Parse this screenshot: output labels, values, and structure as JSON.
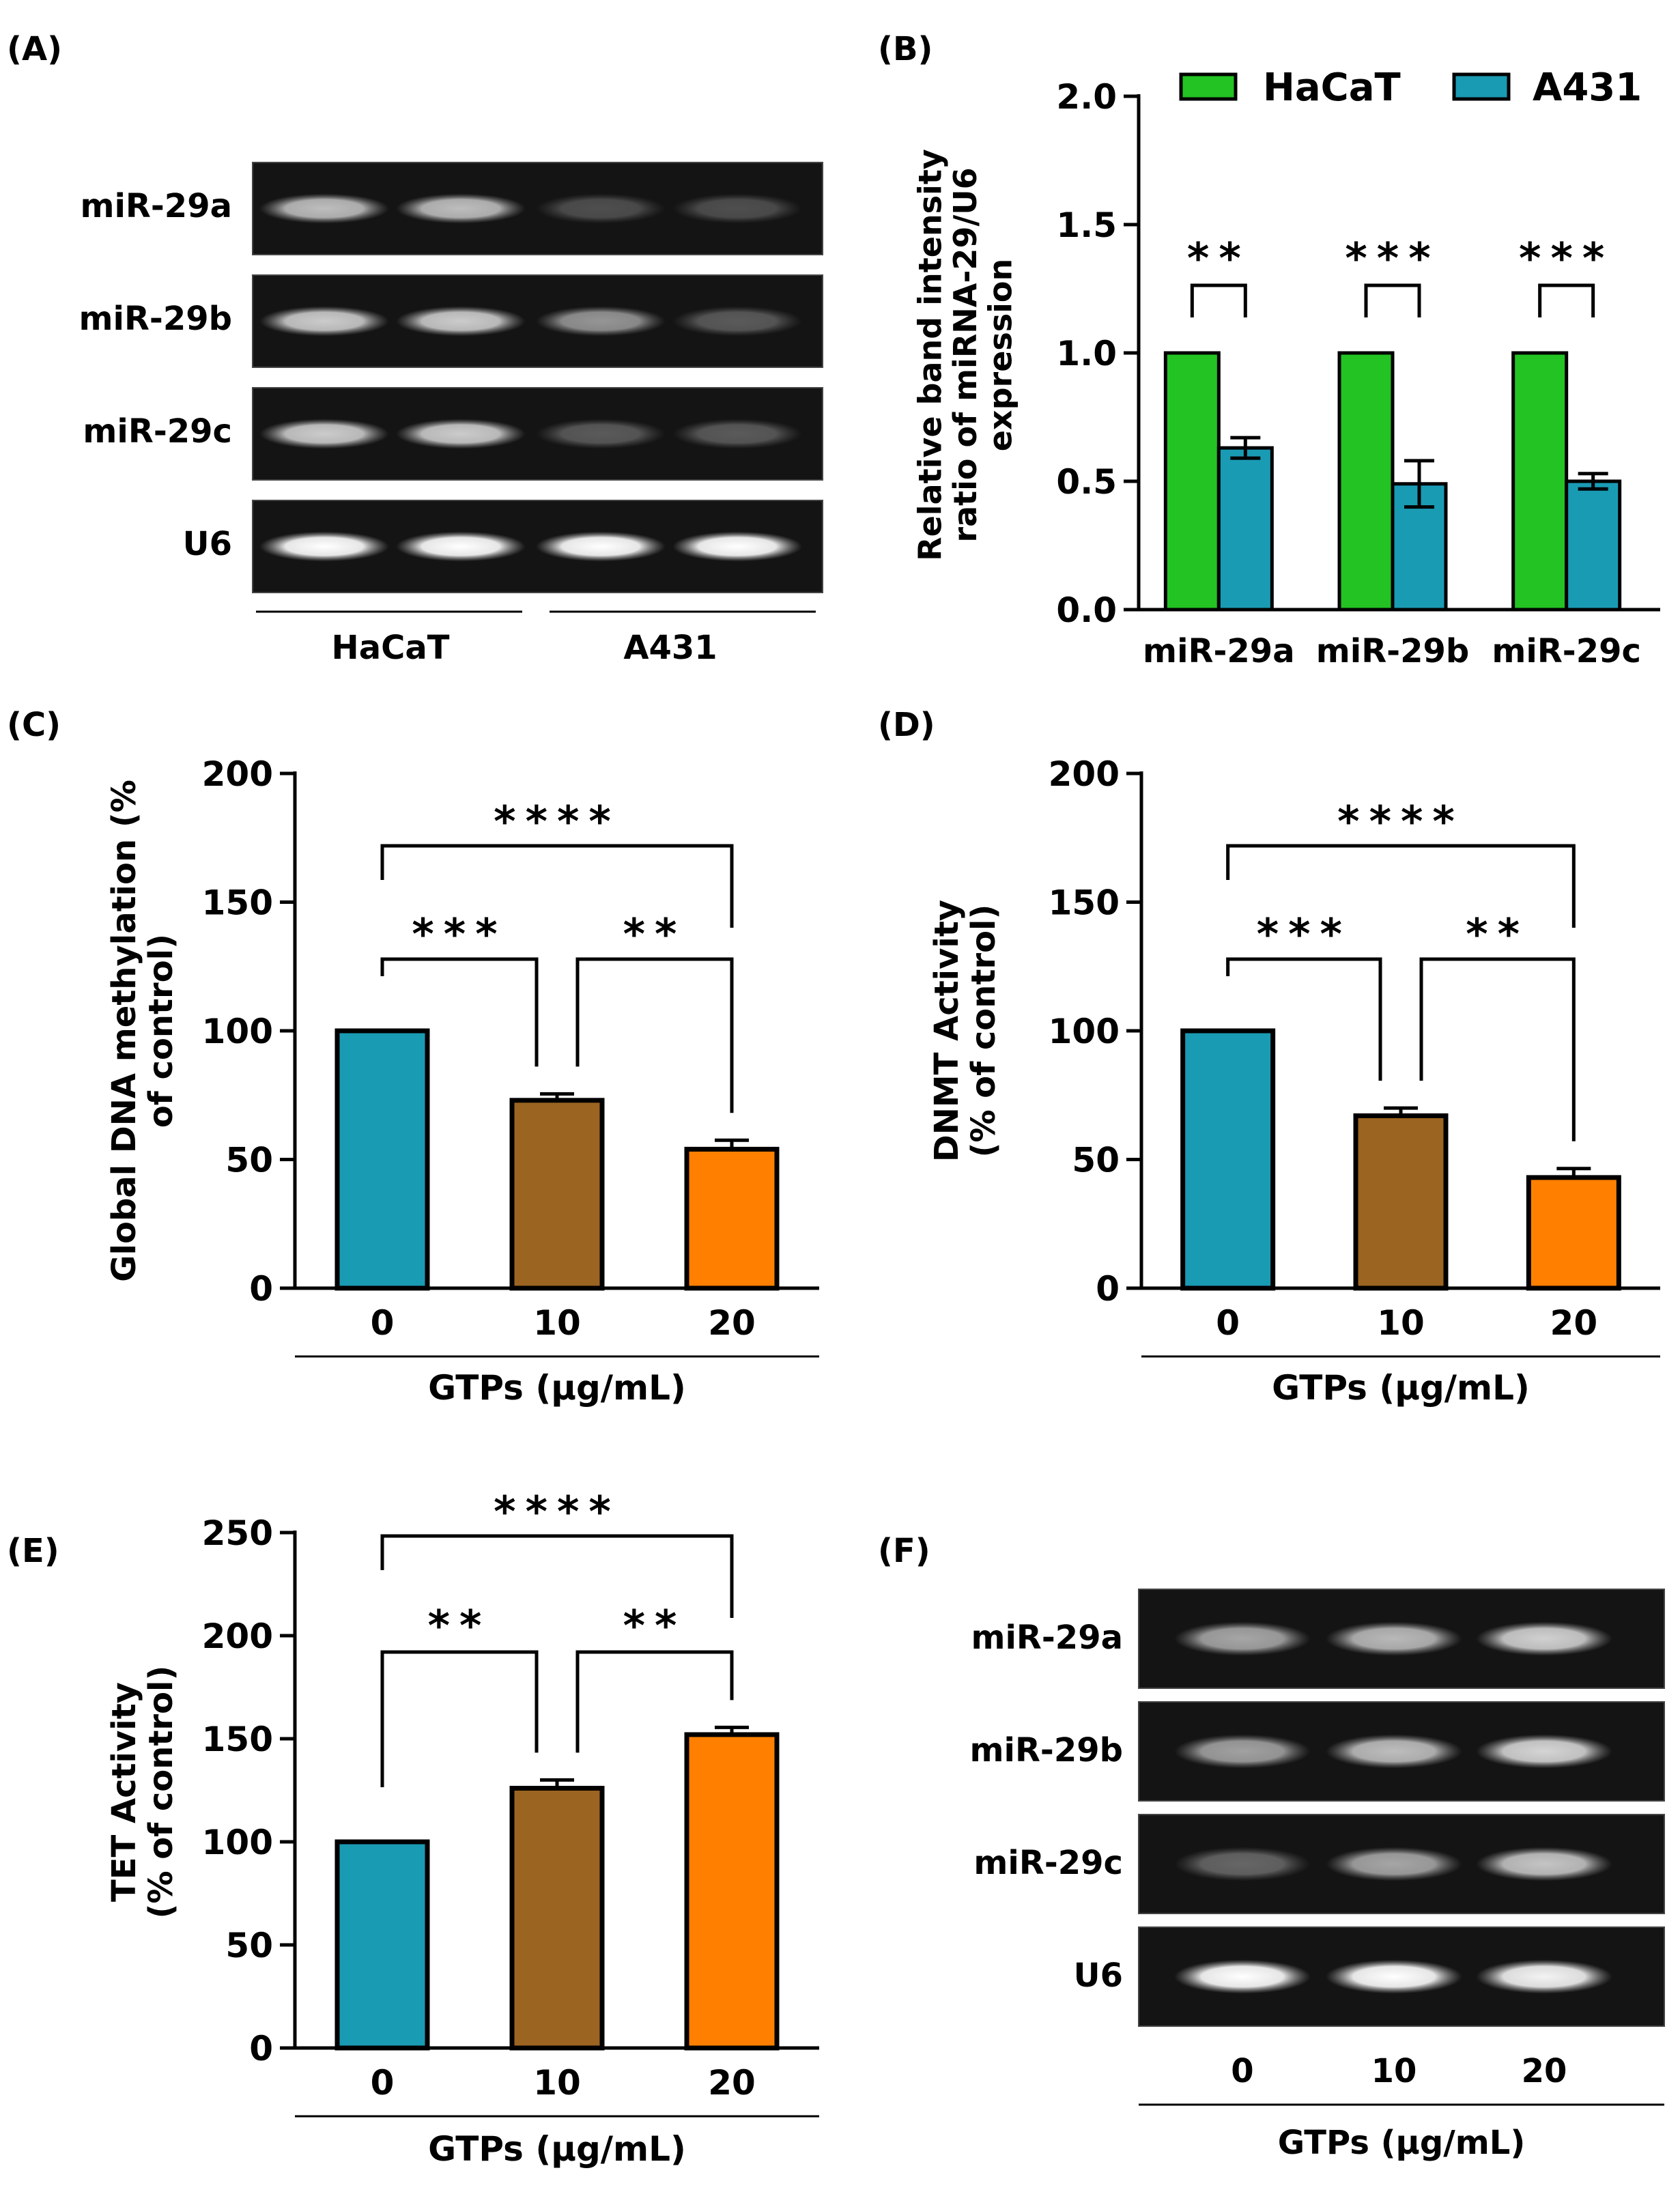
{
  "colors": {
    "hacat": "#22c322",
    "a431": "#1a9bb4",
    "teal": "#1a9bb4",
    "brown": "#9b6420",
    "orange": "#ff8000",
    "axis": "#000000",
    "gel_bg": "#141414"
  },
  "panel_labels": {
    "a": "(A)",
    "b": "(B)",
    "c": "(C)",
    "d": "(D)",
    "e": "(E)",
    "f": "(F)"
  },
  "blot_a": {
    "rows": [
      "miR-29a",
      "miR-29b",
      "miR-29c",
      "U6"
    ],
    "groups": [
      "HaCaT",
      "A431"
    ],
    "lane_intensity": [
      [
        0.72,
        0.72,
        0.25,
        0.25
      ],
      [
        0.78,
        0.78,
        0.55,
        0.3
      ],
      [
        0.78,
        0.78,
        0.3,
        0.3
      ],
      [
        1.0,
        1.0,
        1.0,
        1.0
      ]
    ]
  },
  "blot_f": {
    "rows": [
      "miR-29a",
      "miR-29b",
      "miR-29c",
      "U6"
    ],
    "lanes": [
      "0",
      "10",
      "20"
    ],
    "xlabel": "GTPs (µg/mL)",
    "lane_intensity": [
      [
        0.62,
        0.7,
        0.8
      ],
      [
        0.6,
        0.72,
        0.82
      ],
      [
        0.35,
        0.62,
        0.75
      ],
      [
        1.0,
        1.0,
        0.95
      ]
    ]
  },
  "chart_data": [
    {
      "id": "b",
      "type": "bar",
      "title": "",
      "ylabel": [
        "Relative band intensity",
        "ratio of miRNA-29/U6",
        "expression"
      ],
      "xlabel": "",
      "categories": [
        "miR-29a",
        "miR-29b",
        "miR-29c"
      ],
      "series": [
        {
          "name": "HaCaT",
          "values": [
            1.0,
            1.0,
            1.0
          ],
          "errors": [
            0,
            0,
            0
          ],
          "color": "#22c322"
        },
        {
          "name": "A431",
          "values": [
            0.63,
            0.49,
            0.5
          ],
          "errors": [
            0.04,
            0.09,
            0.03
          ],
          "color": "#1a9bb4"
        }
      ],
      "ylim": [
        0,
        2.0
      ],
      "yticks": [
        "0.0",
        "0.5",
        "1.0",
        "1.5",
        "2.0"
      ],
      "legend": "top-right",
      "significance": [
        "**",
        "***",
        "***"
      ]
    },
    {
      "id": "c",
      "type": "bar",
      "ylabel": [
        "Global DNA methylation (%",
        "of control)"
      ],
      "xlabel": "GTPs (µg/mL)",
      "categories": [
        "0",
        "10",
        "20"
      ],
      "values": [
        100,
        73,
        54
      ],
      "errors": [
        0,
        2.5,
        3.5
      ],
      "colors": [
        "#1a9bb4",
        "#9b6420",
        "#ff8000"
      ],
      "ylim": [
        0,
        200
      ],
      "yticks": [
        "0",
        "50",
        "100",
        "150",
        "200"
      ],
      "significance": [
        {
          "from": 0,
          "to": 1,
          "label": "***"
        },
        {
          "from": 1,
          "to": 2,
          "label": "**"
        },
        {
          "from": 0,
          "to": 2,
          "label": "****"
        }
      ]
    },
    {
      "id": "d",
      "type": "bar",
      "ylabel": [
        "DNMT Activity",
        "(% of control)"
      ],
      "xlabel": "GTPs (µg/mL)",
      "categories": [
        "0",
        "10",
        "20"
      ],
      "values": [
        100,
        67,
        43
      ],
      "errors": [
        0,
        3,
        3.5
      ],
      "colors": [
        "#1a9bb4",
        "#9b6420",
        "#ff8000"
      ],
      "ylim": [
        0,
        200
      ],
      "yticks": [
        "0",
        "50",
        "100",
        "150",
        "200"
      ],
      "significance": [
        {
          "from": 0,
          "to": 1,
          "label": "***"
        },
        {
          "from": 1,
          "to": 2,
          "label": "**"
        },
        {
          "from": 0,
          "to": 2,
          "label": "****"
        }
      ]
    },
    {
      "id": "e",
      "type": "bar",
      "ylabel": [
        "TET Activity",
        "(% of control)"
      ],
      "xlabel": "GTPs (µg/mL)",
      "categories": [
        "0",
        "10",
        "20"
      ],
      "values": [
        100,
        126,
        152
      ],
      "errors": [
        0,
        4,
        3.5
      ],
      "colors": [
        "#1a9bb4",
        "#9b6420",
        "#ff8000"
      ],
      "ylim": [
        0,
        250
      ],
      "yticks": [
        "0",
        "50",
        "100",
        "150",
        "200",
        "250"
      ],
      "significance": [
        {
          "from": 0,
          "to": 1,
          "label": "**"
        },
        {
          "from": 1,
          "to": 2,
          "label": "**"
        },
        {
          "from": 0,
          "to": 2,
          "label": "****"
        }
      ]
    }
  ]
}
